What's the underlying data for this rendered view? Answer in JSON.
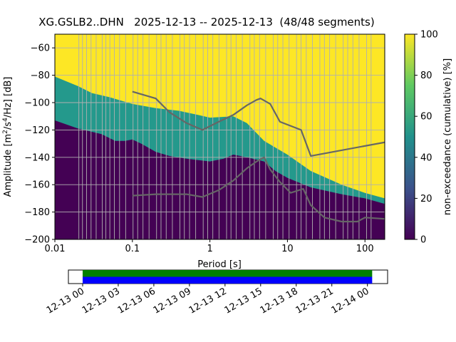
{
  "title": "XG.GSLB2..DHN   2025-12-13 -- 2025-12-13  (48/48 segments)",
  "chart_data": {
    "type": "heatmap",
    "title": "XG.GSLB2..DHN   2025-12-13 -- 2025-12-13  (48/48 segments)",
    "xlabel": "Period [s]",
    "ylabel_parts": [
      "Amplitude [m",
      "2",
      "/s",
      "4",
      "/Hz] [dB]"
    ],
    "xscale": "log",
    "xlim": [
      0.01,
      180
    ],
    "ylim": [
      -200,
      -50
    ],
    "x_ticks": [
      0.01,
      0.1,
      1,
      10,
      100
    ],
    "x_tick_labels": [
      "0.01",
      "0.1",
      "1",
      "10",
      "100"
    ],
    "y_ticks": [
      -200,
      -180,
      -160,
      -140,
      -120,
      -100,
      -80,
      -60
    ],
    "y_tick_labels": [
      "−200",
      "−180",
      "−160",
      "−140",
      "−120",
      "−100",
      "−80",
      "−60"
    ],
    "grid": true,
    "colorbar": {
      "label": "non-exceedance (cumulative) [%]",
      "range": [
        0,
        100
      ],
      "ticks": [
        0,
        20,
        40,
        60,
        80,
        100
      ],
      "tick_labels": [
        "0",
        "20",
        "40",
        "60",
        "80",
        "100"
      ],
      "colors": [
        "#440154",
        "#3b528b",
        "#21918c",
        "#5ec962",
        "#fde725"
      ]
    },
    "region_colors": {
      "low": "#440154",
      "mid": "#24998c",
      "high": "#fde725"
    },
    "boundary_low": [
      {
        "x": 0.01,
        "y": -113
      },
      {
        "x": 0.02,
        "y": -119
      },
      {
        "x": 0.04,
        "y": -123
      },
      {
        "x": 0.06,
        "y": -128
      },
      {
        "x": 0.08,
        "y": -128
      },
      {
        "x": 0.1,
        "y": -127
      },
      {
        "x": 0.13,
        "y": -130
      },
      {
        "x": 0.2,
        "y": -136
      },
      {
        "x": 0.3,
        "y": -139
      },
      {
        "x": 0.5,
        "y": -141
      },
      {
        "x": 1,
        "y": -143
      },
      {
        "x": 1.5,
        "y": -141
      },
      {
        "x": 2,
        "y": -138
      },
      {
        "x": 3,
        "y": -140
      },
      {
        "x": 5,
        "y": -143
      },
      {
        "x": 7,
        "y": -150
      },
      {
        "x": 10,
        "y": -155
      },
      {
        "x": 20,
        "y": -162
      },
      {
        "x": 50,
        "y": -167
      },
      {
        "x": 100,
        "y": -170
      },
      {
        "x": 180,
        "y": -174
      }
    ],
    "boundary_high": [
      {
        "x": 0.01,
        "y": -81
      },
      {
        "x": 0.02,
        "y": -88
      },
      {
        "x": 0.03,
        "y": -93
      },
      {
        "x": 0.05,
        "y": -96
      },
      {
        "x": 0.1,
        "y": -101
      },
      {
        "x": 0.2,
        "y": -104
      },
      {
        "x": 0.4,
        "y": -106
      },
      {
        "x": 0.7,
        "y": -109
      },
      {
        "x": 1,
        "y": -111
      },
      {
        "x": 2,
        "y": -110
      },
      {
        "x": 3,
        "y": -115
      },
      {
        "x": 5,
        "y": -128
      },
      {
        "x": 10,
        "y": -138
      },
      {
        "x": 20,
        "y": -150
      },
      {
        "x": 50,
        "y": -160
      },
      {
        "x": 100,
        "y": -166
      },
      {
        "x": 180,
        "y": -170
      }
    ],
    "series": [
      {
        "values": [
          {
            "x": 0.1,
            "y": -92
          },
          {
            "x": 0.2,
            "y": -97
          },
          {
            "x": 0.3,
            "y": -107
          },
          {
            "x": 0.5,
            "y": -115
          },
          {
            "x": 0.8,
            "y": -120
          },
          {
            "x": 1.3,
            "y": -114
          },
          {
            "x": 2,
            "y": -109
          },
          {
            "x": 3,
            "y": -102
          },
          {
            "x": 4,
            "y": -98
          },
          {
            "x": 4.5,
            "y": -97
          },
          {
            "x": 6,
            "y": -101
          },
          {
            "x": 8,
            "y": -114
          },
          {
            "x": 15,
            "y": -120
          },
          {
            "x": 20,
            "y": -139
          },
          {
            "x": 180,
            "y": -129
          }
        ]
      },
      {
        "values": [
          {
            "x": 0.1,
            "y": -168
          },
          {
            "x": 0.2,
            "y": -167
          },
          {
            "x": 0.5,
            "y": -167
          },
          {
            "x": 0.8,
            "y": -169
          },
          {
            "x": 1.3,
            "y": -164
          },
          {
            "x": 2,
            "y": -157
          },
          {
            "x": 3,
            "y": -148
          },
          {
            "x": 4,
            "y": -143
          },
          {
            "x": 5,
            "y": -140
          },
          {
            "x": 6,
            "y": -149
          },
          {
            "x": 8,
            "y": -158
          },
          {
            "x": 11,
            "y": -166
          },
          {
            "x": 16,
            "y": -163
          },
          {
            "x": 20,
            "y": -175
          },
          {
            "x": 30,
            "y": -184
          },
          {
            "x": 50,
            "y": -187
          },
          {
            "x": 80,
            "y": -187
          },
          {
            "x": 100,
            "y": -184
          },
          {
            "x": 180,
            "y": -185
          }
        ]
      }
    ],
    "vertical_grid_periods": [
      0.0204,
      0.0227,
      0.0256,
      0.0293,
      0.0341,
      0.0408,
      0.0455,
      0.0512,
      0.0585,
      0.0683,
      0.0819,
      0.102,
      0.117,
      0.137,
      0.164,
      0.205,
      0.234,
      0.273,
      0.328,
      0.41,
      0.468,
      0.546,
      0.655,
      0.819,
      0.936,
      1.09,
      1.31,
      1.64,
      1.87,
      2.18,
      2.62,
      3.28,
      3.74,
      4.37,
      5.24,
      6.55,
      7.49,
      8.74,
      10.5,
      13.1,
      15,
      17.5,
      21,
      26.2,
      30,
      35,
      41.9,
      52.4,
      59.9,
      69.9,
      83.9,
      105,
      120
    ],
    "timeline": {
      "tick_labels": [
        "12-13 00",
        "12-13 03",
        "12-13 06",
        "12-13 09",
        "12-13 12",
        "12-13 15",
        "12-13 18",
        "12-13 21",
        "12-14 00"
      ],
      "tick_hours": [
        0,
        3,
        6,
        9,
        12,
        15,
        18,
        21,
        24
      ],
      "range_hours": [
        -1.2,
        25.7
      ],
      "coverage_hours": [
        0,
        24.4
      ],
      "colors": {
        "top": "#008000",
        "bottom": "#0000ff"
      }
    }
  }
}
